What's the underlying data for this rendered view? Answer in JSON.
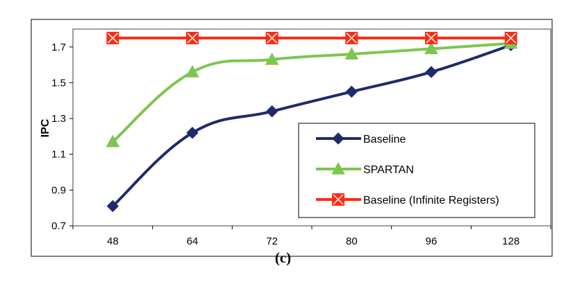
{
  "caption": "(c)",
  "chart_data": {
    "type": "line",
    "categories": [
      "48",
      "64",
      "72",
      "80",
      "96",
      "128"
    ],
    "ylabel": "IPC",
    "xlabel": "",
    "ylim": [
      0.7,
      1.8
    ],
    "yticks": [
      0.7,
      0.9,
      1.1,
      1.3,
      1.5,
      1.7
    ],
    "ytick_labels": [
      "0.7",
      "0.9",
      "1.1",
      "1.3",
      "1.5",
      "1.7"
    ],
    "grid": false,
    "legend_position": "bottom-right",
    "series": [
      {
        "name": "Baseline",
        "values": [
          0.81,
          1.22,
          1.34,
          1.45,
          1.56,
          1.71
        ],
        "color": "#1f2a6b",
        "marker": "diamond"
      },
      {
        "name": "SPARTAN",
        "values": [
          1.17,
          1.56,
          1.63,
          1.66,
          1.69,
          1.72
        ],
        "color": "#7dc650",
        "marker": "triangle"
      },
      {
        "name": "Baseline (Infinite Registers)",
        "values": [
          1.75,
          1.75,
          1.75,
          1.75,
          1.75,
          1.75
        ],
        "color": "#ff2a12",
        "marker": "star"
      }
    ]
  }
}
